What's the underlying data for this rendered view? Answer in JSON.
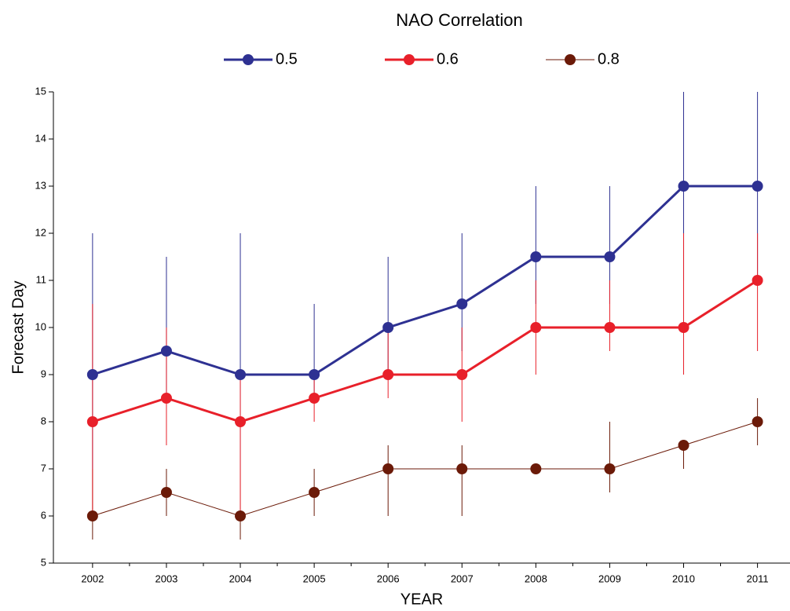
{
  "chart_data": {
    "type": "line",
    "title": "NAO Correlation",
    "x_label": "YEAR",
    "y_label": "Forecast Day",
    "x": [
      2002,
      2003,
      2004,
      2005,
      2006,
      2007,
      2008,
      2009,
      2010,
      2011
    ],
    "xlim": [
      2001.47,
      2011.44
    ],
    "xticks": [
      2002,
      2003,
      2004,
      2005,
      2006,
      2007,
      2008,
      2009,
      2010,
      2011
    ],
    "ylim": [
      5,
      15
    ],
    "yticks": [
      5,
      6,
      7,
      8,
      9,
      10,
      11,
      12,
      13,
      14,
      15
    ],
    "series": [
      {
        "name": "0.8",
        "color": "#6b1a08",
        "width": 1,
        "values": [
          6,
          6.5,
          6,
          6.5,
          7,
          7,
          7,
          7,
          7.5,
          8
        ],
        "low": [
          5.5,
          6,
          5.5,
          6,
          6,
          6,
          7,
          6.5,
          7,
          7.5
        ],
        "high": [
          7,
          7,
          7,
          7,
          7.5,
          7.5,
          7,
          8,
          7.5,
          8.5
        ]
      },
      {
        "name": "0.5",
        "color": "#2e3192",
        "width": 3,
        "values": [
          9,
          9.5,
          9,
          9,
          10,
          10.5,
          11.5,
          11.5,
          13,
          13
        ],
        "low": [
          7,
          8.5,
          7,
          8.5,
          9,
          9.5,
          10.5,
          10.5,
          11,
          11
        ],
        "high": [
          12,
          11.5,
          12,
          10.5,
          11.5,
          12,
          13,
          13,
          15,
          15
        ]
      },
      {
        "name": "0.6",
        "color": "#e8202a",
        "width": 3,
        "values": [
          8,
          8.5,
          8,
          8.5,
          9,
          9,
          10,
          10,
          10,
          11
        ],
        "low": [
          6,
          7.5,
          6,
          8,
          8.5,
          8,
          9,
          9.5,
          9,
          9.5
        ],
        "high": [
          10.5,
          10,
          9,
          9,
          10,
          10,
          11,
          11,
          12,
          12
        ]
      }
    ],
    "legend_order": [
      1,
      2,
      0
    ]
  }
}
